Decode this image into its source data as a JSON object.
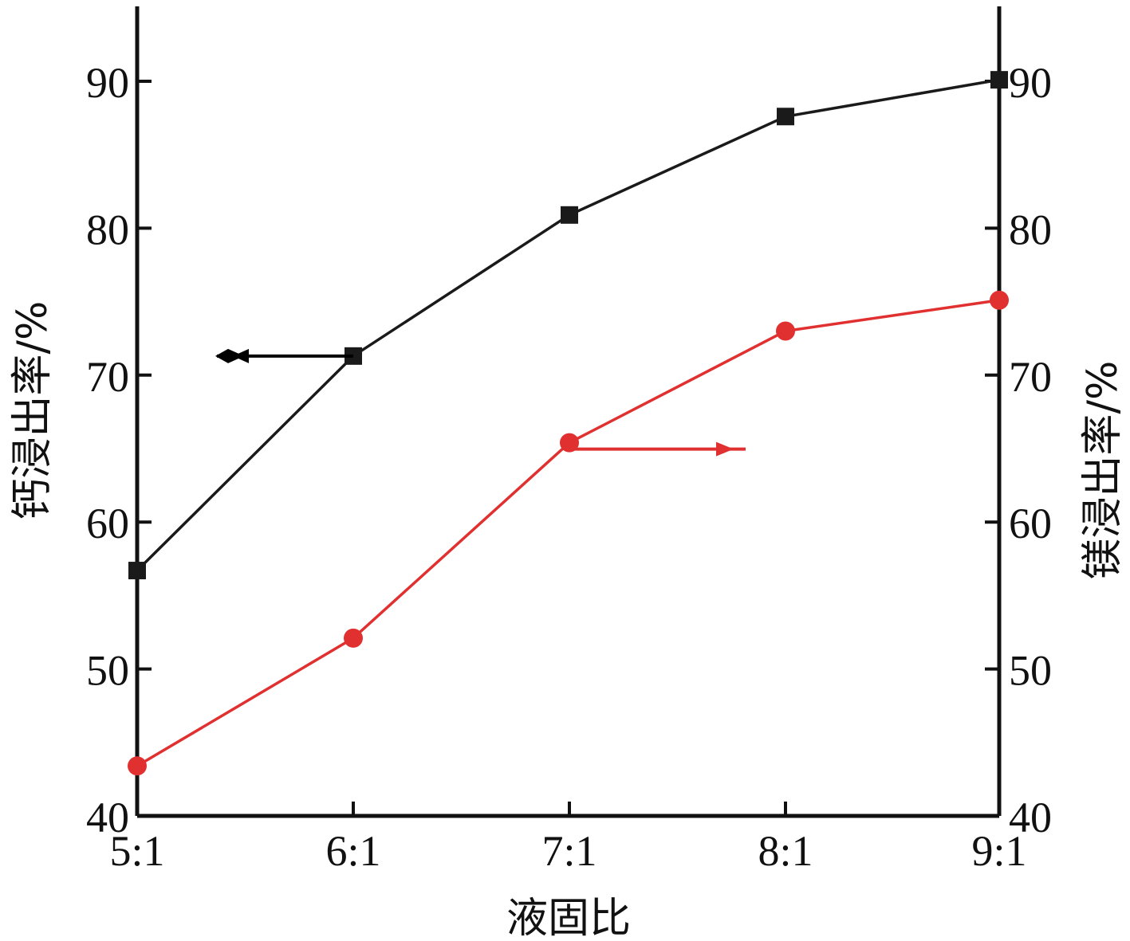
{
  "chart_data": {
    "type": "line",
    "categories": [
      "5:1",
      "6:1",
      "7:1",
      "8:1",
      "9:1"
    ],
    "xlabel": "液固比",
    "ylabel_left": "钙浸出率/%",
    "ylabel_right": "镁浸出率/%",
    "ylim_left": [
      40,
      95
    ],
    "ylim_right": [
      40,
      95
    ],
    "yticks": [
      40,
      50,
      60,
      70,
      80,
      90
    ],
    "grid": false,
    "series": [
      {
        "axis": "left",
        "color": "#1a1a1a",
        "marker": "square",
        "values": [
          56.7,
          71.3,
          80.9,
          87.6,
          90.1
        ]
      },
      {
        "axis": "right",
        "color": "#e03030",
        "marker": "circle",
        "values": [
          43.4,
          52.1,
          65.4,
          73.0,
          75.1
        ]
      }
    ],
    "annotations": [
      {
        "type": "arrow",
        "direction": "left",
        "series_index": 0,
        "color": "#000000"
      },
      {
        "type": "arrow",
        "direction": "right",
        "series_index": 1,
        "color": "#e03030"
      }
    ]
  }
}
